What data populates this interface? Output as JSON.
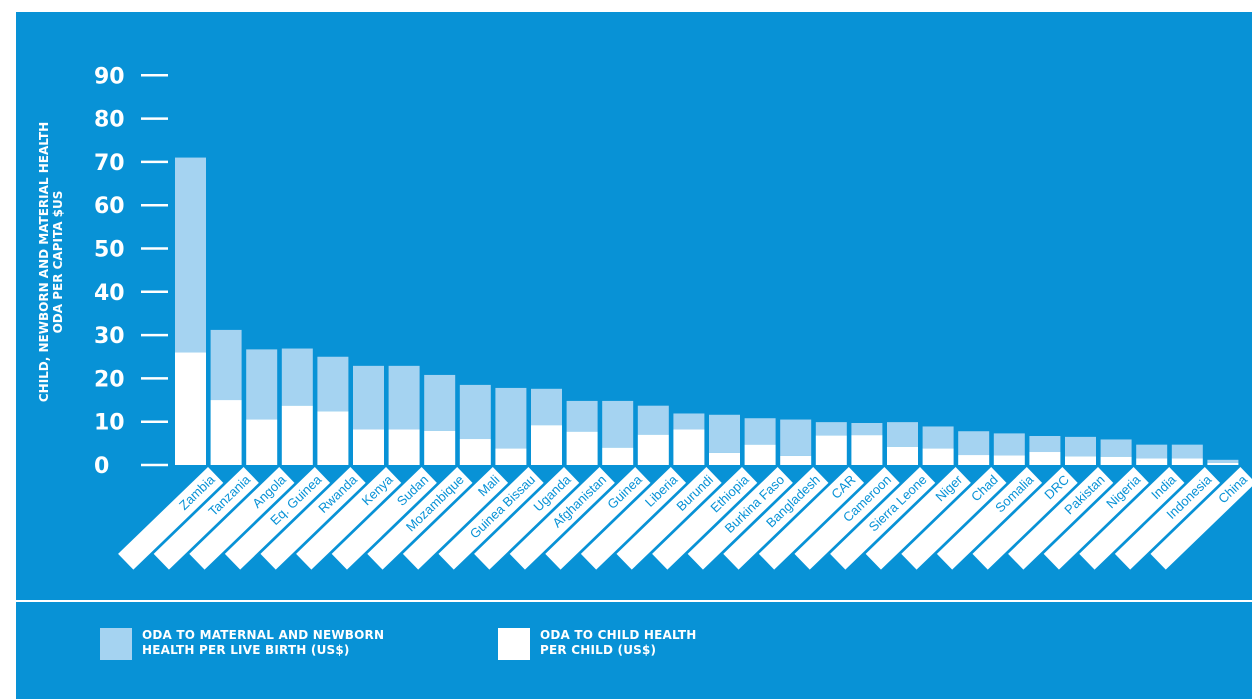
{
  "chart_data": {
    "type": "bar",
    "stacked": true,
    "ylabel_lines": [
      "CHILD, NEWBORN AND MATERIAL HEALTH",
      "ODA PER CAPITA $US"
    ],
    "ylim": [
      0,
      90
    ],
    "yticks": [
      "0",
      "10",
      "20",
      "30",
      "40",
      "50",
      "60",
      "70",
      "80",
      "90"
    ],
    "categories": [
      "Zambia",
      "Tanzania",
      "Angola",
      "Eq. Guinea",
      "Rwanda",
      "Kenya",
      "Sudan",
      "Mozambique",
      "Mali",
      "Guinea Bissau",
      "Uganda",
      "Afghanistan",
      "Guinea",
      "Liberia",
      "Burundi",
      "Ethiopia",
      "Burkina Faso",
      "Bangladesh",
      "CAR",
      "Cameroon",
      "Sierra Leone",
      "Niger",
      "Chad",
      "Somalia",
      "DRC",
      "Pakistan",
      "Nigeria",
      "India",
      "Indonesia",
      "China"
    ],
    "series": [
      {
        "name_lines": [
          "ODA TO CHILD HEALTH",
          "PER CHILD (US$)"
        ],
        "color": "#ffffff",
        "values": [
          26,
          15,
          10.5,
          13.7,
          12.4,
          8.2,
          8.2,
          7.9,
          6,
          3.8,
          9.2,
          7.7,
          4,
          7,
          8.2,
          2.8,
          4.7,
          2.1,
          6.8,
          6.9,
          4.2,
          3.8,
          2.3,
          2.2,
          3,
          2,
          1.9,
          1.5,
          1.5,
          0.5
        ]
      },
      {
        "name_lines": [
          "ODA TO MATERNAL AND NEWBORN",
          "HEALTH PER LIVE BIRTH (US$)"
        ],
        "color": "#a5d3f1",
        "values": [
          45,
          16.2,
          16.2,
          13.2,
          12.6,
          14.7,
          14.7,
          12.9,
          12.5,
          14,
          8.4,
          7.1,
          10.8,
          6.7,
          3.7,
          8.8,
          6.1,
          8.4,
          3.1,
          2.8,
          5.7,
          5.1,
          5.5,
          5.1,
          3.7,
          4.5,
          4,
          3.2,
          3.2,
          0.7
        ]
      }
    ],
    "legend_position": "bottom-left",
    "grid": false
  }
}
